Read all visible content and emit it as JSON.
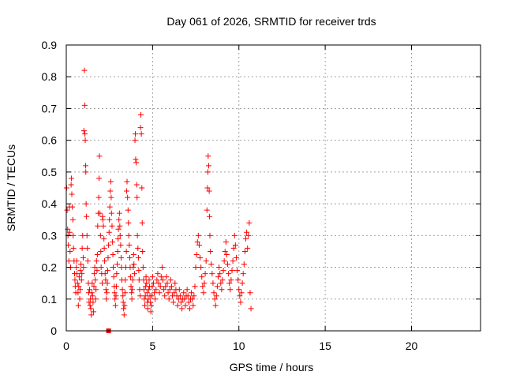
{
  "chart_data": {
    "type": "scatter",
    "title": "Day 061 of 2026, SRMTID for receiver trds",
    "xlabel": "GPS time / hours",
    "ylabel": "SRMTID / TECUs",
    "xlim": [
      0,
      24
    ],
    "ylim": [
      0,
      0.9
    ],
    "xticks": [
      0,
      5,
      10,
      15,
      20
    ],
    "xtick_labels": [
      "0",
      "5",
      "10",
      "15",
      "20"
    ],
    "yticks": [
      0,
      0.1,
      0.2,
      0.3,
      0.4,
      0.5,
      0.6,
      0.7,
      0.8,
      0.9
    ],
    "ytick_labels": [
      "0",
      "0.1",
      "0.2",
      "0.3",
      "0.4",
      "0.5",
      "0.6",
      "0.7",
      "0.8",
      "0.9"
    ],
    "grid": true,
    "marker": "+",
    "color": "#ff0000",
    "series": [
      {
        "name": "SRMTID",
        "points": [
          [
            0.02,
            0.45
          ],
          [
            0.05,
            0.38
          ],
          [
            0.08,
            0.32
          ],
          [
            0.1,
            0.3
          ],
          [
            0.12,
            0.27
          ],
          [
            0.15,
            0.22
          ],
          [
            0.18,
            0.39
          ],
          [
            0.2,
            0.31
          ],
          [
            0.22,
            0.25
          ],
          [
            0.25,
            0.2
          ],
          [
            0.28,
            0.46
          ],
          [
            0.3,
            0.48
          ],
          [
            0.32,
            0.43
          ],
          [
            0.35,
            0.39
          ],
          [
            0.38,
            0.35
          ],
          [
            0.4,
            0.3
          ],
          [
            0.42,
            0.26
          ],
          [
            0.45,
            0.22
          ],
          [
            0.48,
            0.18
          ],
          [
            0.5,
            0.16
          ],
          [
            0.52,
            0.14
          ],
          [
            0.55,
            0.12
          ],
          [
            0.58,
            0.2
          ],
          [
            0.6,
            0.22
          ],
          [
            0.62,
            0.18
          ],
          [
            0.65,
            0.15
          ],
          [
            0.68,
            0.12
          ],
          [
            0.7,
            0.08
          ],
          [
            0.72,
            0.14
          ],
          [
            0.75,
            0.17
          ],
          [
            0.78,
            0.1
          ],
          [
            0.8,
            0.13
          ],
          [
            0.82,
            0.19
          ],
          [
            0.85,
            0.21
          ],
          [
            0.88,
            0.16
          ],
          [
            0.9,
            0.18
          ],
          [
            0.92,
            0.26
          ],
          [
            0.95,
            0.3
          ],
          [
            0.98,
            0.23
          ],
          [
            1.0,
            0.2
          ],
          [
            1.02,
            0.63
          ],
          [
            1.05,
            0.82
          ],
          [
            1.07,
            0.71
          ],
          [
            1.08,
            0.62
          ],
          [
            1.1,
            0.6
          ],
          [
            1.12,
            0.52
          ],
          [
            1.13,
            0.5
          ],
          [
            1.15,
            0.4
          ],
          [
            1.17,
            0.36
          ],
          [
            1.2,
            0.3
          ],
          [
            1.22,
            0.26
          ],
          [
            1.25,
            0.22
          ],
          [
            1.28,
            0.15
          ],
          [
            1.3,
            0.12
          ],
          [
            1.32,
            0.09
          ],
          [
            1.35,
            0.13
          ],
          [
            1.38,
            0.08
          ],
          [
            1.4,
            0.1
          ],
          [
            1.42,
            0.07
          ],
          [
            1.45,
            0.05
          ],
          [
            1.48,
            0.12
          ],
          [
            1.5,
            0.15
          ],
          [
            1.52,
            0.11
          ],
          [
            1.55,
            0.09
          ],
          [
            1.58,
            0.06
          ],
          [
            1.6,
            0.14
          ],
          [
            1.62,
            0.18
          ],
          [
            1.65,
            0.2
          ],
          [
            1.68,
            0.16
          ],
          [
            1.7,
            0.1
          ],
          [
            1.72,
            0.13
          ],
          [
            1.75,
            0.22
          ],
          [
            1.78,
            0.19
          ],
          [
            1.8,
            0.24
          ],
          [
            1.82,
            0.33
          ],
          [
            1.85,
            0.37
          ],
          [
            1.88,
            0.42
          ],
          [
            1.9,
            0.48
          ],
          [
            1.92,
            0.55
          ],
          [
            1.95,
            0.37
          ],
          [
            1.98,
            0.3
          ],
          [
            2.0,
            0.25
          ],
          [
            2.02,
            0.2
          ],
          [
            2.05,
            0.18
          ],
          [
            2.08,
            0.15
          ],
          [
            2.1,
            0.36
          ],
          [
            2.12,
            0.35
          ],
          [
            2.15,
            0.33
          ],
          [
            2.18,
            0.29
          ],
          [
            2.2,
            0.26
          ],
          [
            2.22,
            0.22
          ],
          [
            2.25,
            0.18
          ],
          [
            2.28,
            0.16
          ],
          [
            2.3,
            0.13
          ],
          [
            2.32,
            0.1
          ],
          [
            2.35,
            0.12
          ],
          [
            2.38,
            0.15
          ],
          [
            2.4,
            0.19
          ],
          [
            2.42,
            0.23
          ],
          [
            2.45,
            0.27
          ],
          [
            2.48,
            0.31
          ],
          [
            2.5,
            0.35
          ],
          [
            2.52,
            0.39
          ],
          [
            2.55,
            0.44
          ],
          [
            2.58,
            0.47
          ],
          [
            2.6,
            0.42
          ],
          [
            2.62,
            0.37
          ],
          [
            2.65,
            0.33
          ],
          [
            2.68,
            0.28
          ],
          [
            2.7,
            0.24
          ],
          [
            2.72,
            0.2
          ],
          [
            2.75,
            0.17
          ],
          [
            2.78,
            0.14
          ],
          [
            2.8,
            0.12
          ],
          [
            2.82,
            0.1
          ],
          [
            2.85,
            0.08
          ],
          [
            2.88,
            0.11
          ],
          [
            2.9,
            0.14
          ],
          [
            2.92,
            0.18
          ],
          [
            2.95,
            0.21
          ],
          [
            2.98,
            0.25
          ],
          [
            3.0,
            0.29
          ],
          [
            3.02,
            0.32
          ],
          [
            3.05,
            0.35
          ],
          [
            3.08,
            0.37
          ],
          [
            3.1,
            0.33
          ],
          [
            3.12,
            0.3
          ],
          [
            3.15,
            0.27
          ],
          [
            3.18,
            0.23
          ],
          [
            3.2,
            0.2
          ],
          [
            3.22,
            0.16
          ],
          [
            3.25,
            0.13
          ],
          [
            3.28,
            0.11
          ],
          [
            3.3,
            0.09
          ],
          [
            3.32,
            0.07
          ],
          [
            3.35,
            0.05
          ],
          [
            3.38,
            0.08
          ],
          [
            3.4,
            0.12
          ],
          [
            3.42,
            0.16
          ],
          [
            3.45,
            0.2
          ],
          [
            3.48,
            0.25
          ],
          [
            3.5,
            0.44
          ],
          [
            3.52,
            0.47
          ],
          [
            3.55,
            0.42
          ],
          [
            3.58,
            0.38
          ],
          [
            3.6,
            0.34
          ],
          [
            3.62,
            0.3
          ],
          [
            3.65,
            0.27
          ],
          [
            3.68,
            0.23
          ],
          [
            3.7,
            0.2
          ],
          [
            3.72,
            0.17
          ],
          [
            3.75,
            0.14
          ],
          [
            3.78,
            0.12
          ],
          [
            3.8,
            0.1
          ],
          [
            3.82,
            0.13
          ],
          [
            3.85,
            0.16
          ],
          [
            3.88,
            0.2
          ],
          [
            3.9,
            0.24
          ],
          [
            3.92,
            0.21
          ],
          [
            3.95,
            0.18
          ],
          [
            3.98,
            0.6
          ],
          [
            4.0,
            0.62
          ],
          [
            4.02,
            0.54
          ],
          [
            4.05,
            0.53
          ],
          [
            4.08,
            0.46
          ],
          [
            4.1,
            0.42
          ],
          [
            4.12,
            0.3
          ],
          [
            4.15,
            0.26
          ],
          [
            4.18,
            0.23
          ],
          [
            4.2,
            0.19
          ],
          [
            4.22,
            0.16
          ],
          [
            4.25,
            0.13
          ],
          [
            4.28,
            0.11
          ],
          [
            4.3,
            0.64
          ],
          [
            4.32,
            0.68
          ],
          [
            4.35,
            0.62
          ],
          [
            4.38,
            0.45
          ],
          [
            4.4,
            0.34
          ],
          [
            4.42,
            0.25
          ],
          [
            4.45,
            0.2
          ],
          [
            4.48,
            0.16
          ],
          [
            4.5,
            0.13
          ],
          [
            4.52,
            0.1
          ],
          [
            4.55,
            0.08
          ],
          [
            4.58,
            0.11
          ],
          [
            4.6,
            0.14
          ],
          [
            4.62,
            0.17
          ],
          [
            4.65,
            0.15
          ],
          [
            4.68,
            0.12
          ],
          [
            4.7,
            0.09
          ],
          [
            4.72,
            0.07
          ],
          [
            4.75,
            0.1
          ],
          [
            4.78,
            0.13
          ],
          [
            4.8,
            0.16
          ],
          [
            4.82,
            0.14
          ],
          [
            4.85,
            0.11
          ],
          [
            4.88,
            0.09
          ],
          [
            4.9,
            0.06
          ],
          [
            4.92,
            0.08
          ],
          [
            4.95,
            0.11
          ],
          [
            4.98,
            0.14
          ],
          [
            5.0,
            0.17
          ],
          [
            5.05,
            0.15
          ],
          [
            5.1,
            0.12
          ],
          [
            5.15,
            0.1
          ],
          [
            5.2,
            0.13
          ],
          [
            5.25,
            0.16
          ],
          [
            5.3,
            0.18
          ],
          [
            5.35,
            0.15
          ],
          [
            5.4,
            0.12
          ],
          [
            5.45,
            0.14
          ],
          [
            5.5,
            0.17
          ],
          [
            5.55,
            0.2
          ],
          [
            5.6,
            0.16
          ],
          [
            5.65,
            0.13
          ],
          [
            5.7,
            0.11
          ],
          [
            5.75,
            0.14
          ],
          [
            5.8,
            0.17
          ],
          [
            5.85,
            0.15
          ],
          [
            5.9,
            0.12
          ],
          [
            5.95,
            0.1
          ],
          [
            6.0,
            0.13
          ],
          [
            6.05,
            0.16
          ],
          [
            6.1,
            0.14
          ],
          [
            6.15,
            0.11
          ],
          [
            6.2,
            0.09
          ],
          [
            6.25,
            0.12
          ],
          [
            6.3,
            0.15
          ],
          [
            6.35,
            0.13
          ],
          [
            6.4,
            0.11
          ],
          [
            6.45,
            0.08
          ],
          [
            6.5,
            0.1
          ],
          [
            6.55,
            0.13
          ],
          [
            6.6,
            0.11
          ],
          [
            6.65,
            0.09
          ],
          [
            6.7,
            0.07
          ],
          [
            6.75,
            0.1
          ],
          [
            6.8,
            0.12
          ],
          [
            6.85,
            0.1
          ],
          [
            6.9,
            0.08
          ],
          [
            6.95,
            0.11
          ],
          [
            7.0,
            0.13
          ],
          [
            7.05,
            0.11
          ],
          [
            7.1,
            0.09
          ],
          [
            7.15,
            0.07
          ],
          [
            7.2,
            0.1
          ],
          [
            7.25,
            0.12
          ],
          [
            7.3,
            0.1
          ],
          [
            7.35,
            0.08
          ],
          [
            7.4,
            0.11
          ],
          [
            7.45,
            0.14
          ],
          [
            7.5,
            0.2
          ],
          [
            7.55,
            0.24
          ],
          [
            7.6,
            0.28
          ],
          [
            7.65,
            0.3
          ],
          [
            7.7,
            0.27
          ],
          [
            7.75,
            0.23
          ],
          [
            7.8,
            0.2
          ],
          [
            7.85,
            0.17
          ],
          [
            7.9,
            0.14
          ],
          [
            7.95,
            0.12
          ],
          [
            8.0,
            0.15
          ],
          [
            8.05,
            0.18
          ],
          [
            8.1,
            0.22
          ],
          [
            8.15,
            0.38
          ],
          [
            8.18,
            0.45
          ],
          [
            8.2,
            0.5
          ],
          [
            8.22,
            0.55
          ],
          [
            8.25,
            0.52
          ],
          [
            8.28,
            0.44
          ],
          [
            8.3,
            0.36
          ],
          [
            8.32,
            0.3
          ],
          [
            8.35,
            0.25
          ],
          [
            8.4,
            0.21
          ],
          [
            8.45,
            0.18
          ],
          [
            8.5,
            0.15
          ],
          [
            8.55,
            0.12
          ],
          [
            8.6,
            0.1
          ],
          [
            8.65,
            0.08
          ],
          [
            8.7,
            0.11
          ],
          [
            8.75,
            0.14
          ],
          [
            8.8,
            0.17
          ],
          [
            8.85,
            0.2
          ],
          [
            8.9,
            0.18
          ],
          [
            8.95,
            0.15
          ],
          [
            9.0,
            0.13
          ],
          [
            9.05,
            0.16
          ],
          [
            9.1,
            0.19
          ],
          [
            9.15,
            0.22
          ],
          [
            9.2,
            0.25
          ],
          [
            9.25,
            0.28
          ],
          [
            9.3,
            0.24
          ],
          [
            9.35,
            0.21
          ],
          [
            9.4,
            0.18
          ],
          [
            9.45,
            0.15
          ],
          [
            9.5,
            0.13
          ],
          [
            9.55,
            0.16
          ],
          [
            9.6,
            0.19
          ],
          [
            9.65,
            0.22
          ],
          [
            9.7,
            0.26
          ],
          [
            9.75,
            0.3
          ],
          [
            9.8,
            0.27
          ],
          [
            9.85,
            0.23
          ],
          [
            9.9,
            0.19
          ],
          [
            9.95,
            0.16
          ],
          [
            10.0,
            0.13
          ],
          [
            10.05,
            0.11
          ],
          [
            10.1,
            0.09
          ],
          [
            10.15,
            0.12
          ],
          [
            10.2,
            0.15
          ],
          [
            10.25,
            0.18
          ],
          [
            10.3,
            0.21
          ],
          [
            10.35,
            0.25
          ],
          [
            10.4,
            0.29
          ],
          [
            10.45,
            0.31
          ],
          [
            10.5,
            0.26
          ],
          [
            10.55,
            0.3
          ],
          [
            10.6,
            0.34
          ],
          [
            10.65,
            0.12
          ],
          [
            10.7,
            0.07
          ]
        ]
      }
    ],
    "special_marker": {
      "x": 2.45,
      "y": 0.0,
      "shape": "square"
    }
  }
}
